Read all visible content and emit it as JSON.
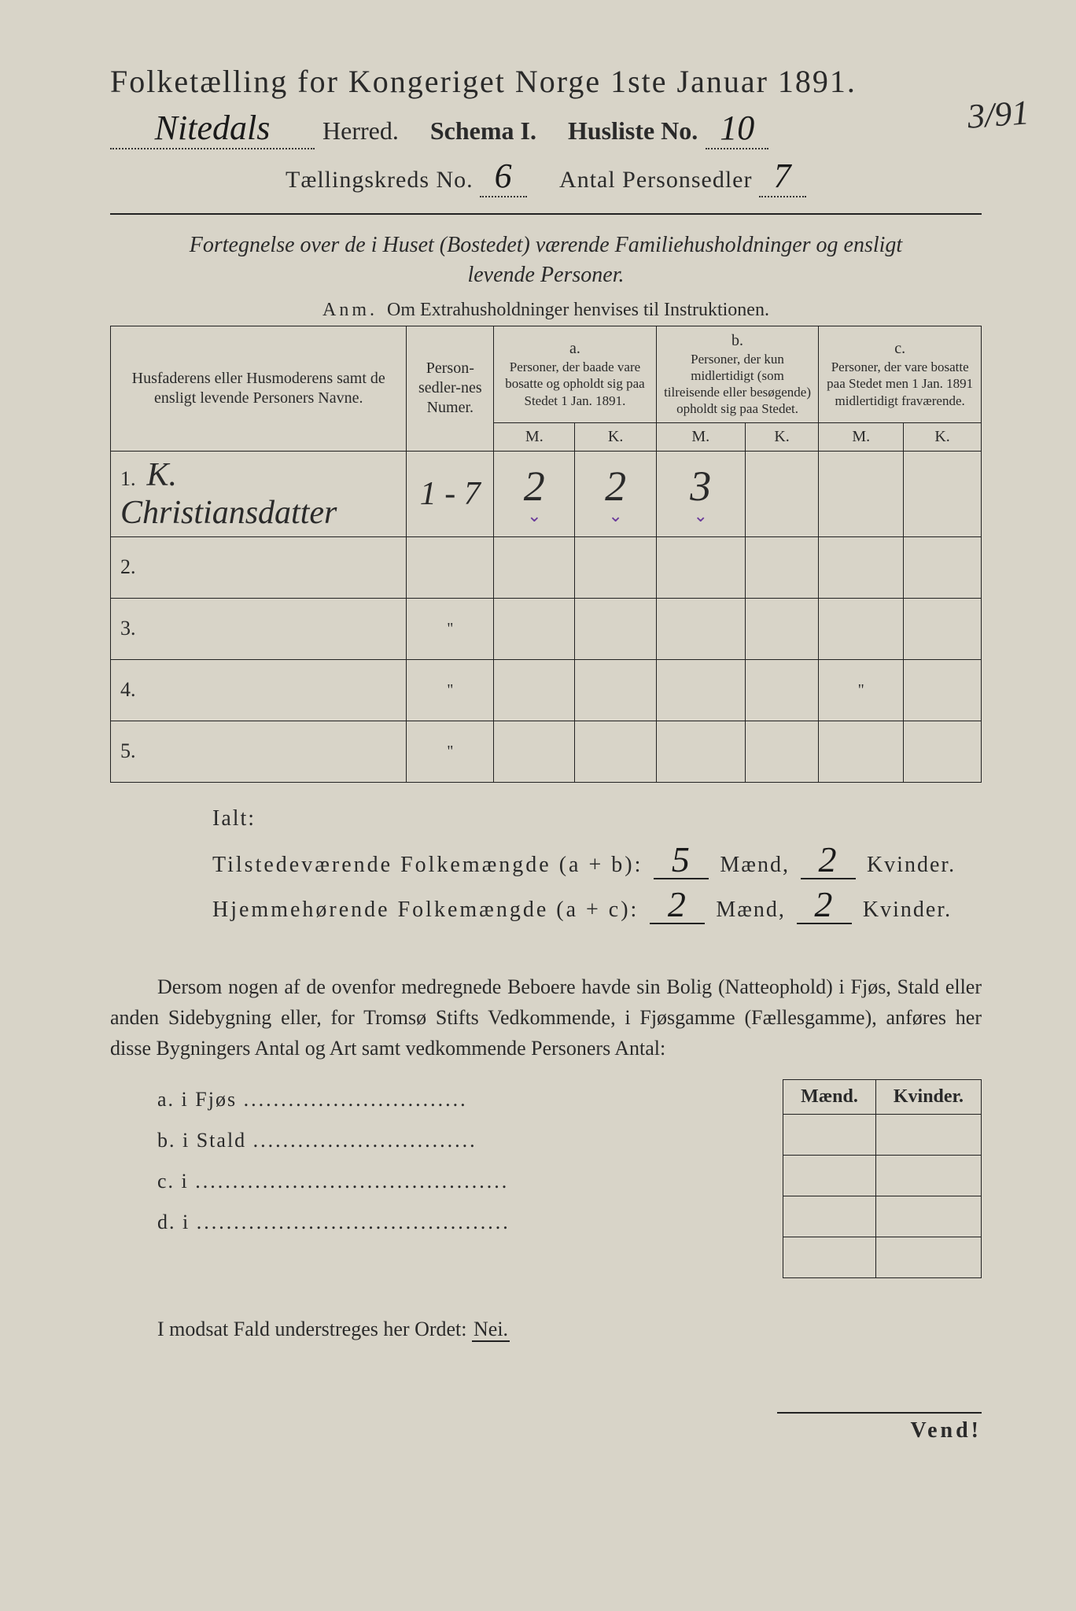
{
  "header": {
    "title": "Folketælling for Kongeriget Norge 1ste Januar 1891.",
    "herred_value": "Nitedals",
    "herred_label": "Herred.",
    "schema_label": "Schema I.",
    "husliste_label": "Husliste No.",
    "husliste_value": "10",
    "margin_note": "3/91",
    "kreds_label": "Tællingskreds No.",
    "kreds_value": "6",
    "antal_label": "Antal Personsedler",
    "antal_value": "7"
  },
  "subtitle": {
    "line1": "Fortegnelse over de i Huset (Bostedet) værende Familiehusholdninger og ensligt",
    "line2": "levende Personer."
  },
  "anm": {
    "label": "Anm.",
    "text": "Om Extrahusholdninger henvises til Instruktionen."
  },
  "table": {
    "col1": "Husfaderens eller Husmoderens samt de ensligt levende Personers Navne.",
    "col2": "Person-sedler-nes Numer.",
    "a_label": "a.",
    "a_text": "Personer, der baade vare bosatte og opholdt sig paa Stedet 1 Jan. 1891.",
    "b_label": "b.",
    "b_text": "Personer, der kun midlertidigt (som tilreisende eller besøgende) opholdt sig paa Stedet.",
    "c_label": "c.",
    "c_text": "Personer, der vare bosatte paa Stedet men 1 Jan. 1891 midlertidigt fraværende.",
    "M": "M.",
    "K": "K.",
    "rows": [
      {
        "n": "1.",
        "name": "K. Christiansdatter",
        "num": "1 - 7",
        "aM": "2",
        "aK": "2",
        "bM": "3",
        "bK": "",
        "cM": "",
        "cK": "",
        "ticks": true
      },
      {
        "n": "2.",
        "name": "",
        "num": "",
        "aM": "",
        "aK": "",
        "bM": "",
        "bK": "",
        "cM": "",
        "cK": ""
      },
      {
        "n": "3.",
        "name": "",
        "num": "\"",
        "aM": "",
        "aK": "",
        "bM": "",
        "bK": "",
        "cM": "",
        "cK": ""
      },
      {
        "n": "4.",
        "name": "",
        "num": "\"",
        "aM": "",
        "aK": "",
        "bM": "",
        "bK": "",
        "cM": "\"",
        "cK": ""
      },
      {
        "n": "5.",
        "name": "",
        "num": "\"",
        "aM": "",
        "aK": "",
        "bM": "",
        "bK": "",
        "cM": "",
        "cK": ""
      }
    ]
  },
  "ialt": {
    "label": "Ialt:",
    "row1_label": "Tilstedeværende Folkemængde (a + b):",
    "row1_m": "5",
    "row1_k": "2",
    "row2_label": "Hjemmehørende Folkemængde (a + c):",
    "row2_m": "2",
    "row2_k": "2",
    "maend": "Mænd,",
    "kvinder": "Kvinder."
  },
  "paragraph": "Dersom nogen af de ovenfor medregnede Beboere havde sin Bolig (Natteophold) i Fjøs, Stald eller anden Sidebygning eller, for Tromsø Stifts Vedkommende, i Fjøsgamme (Fællesgamme), anføres her disse Bygningers Antal og Art samt vedkommende Personers Antal:",
  "sublist": {
    "a": "a.  i      Fjøs",
    "b": "b.  i      Stald",
    "c": "c.  i",
    "d": "d.  i",
    "dots": "..............................",
    "dots_long": "..........................................",
    "maend": "Mænd.",
    "kvinder": "Kvinder."
  },
  "nei": {
    "text": "I modsat Fald understreges her Ordet:",
    "word": "Nei."
  },
  "vend": "Vend!",
  "colors": {
    "paper": "#d8d4c8",
    "ink": "#2a2a2a",
    "tick": "#6a3a9a"
  }
}
